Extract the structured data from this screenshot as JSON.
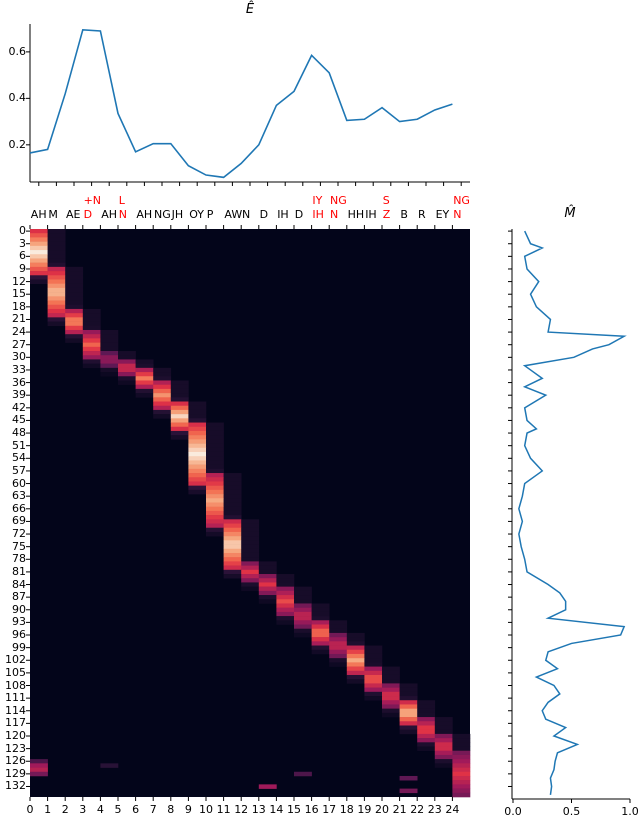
{
  "chart_data": [
    {
      "type": "line",
      "title": "Ê",
      "xlabel": "",
      "ylabel": "",
      "x": [
        0,
        1,
        2,
        3,
        4,
        5,
        6,
        7,
        8,
        9,
        10,
        11,
        12,
        13,
        14,
        15,
        16,
        17,
        18,
        19,
        20,
        21,
        22,
        23,
        24
      ],
      "values": [
        0.165,
        0.18,
        0.42,
        0.695,
        0.69,
        0.335,
        0.17,
        0.205,
        0.205,
        0.11,
        0.07,
        0.06,
        0.12,
        0.2,
        0.37,
        0.43,
        0.585,
        0.51,
        0.305,
        0.31,
        0.36,
        0.3,
        0.31,
        0.35,
        0.375
      ],
      "ylim": [
        0.04,
        0.72
      ],
      "yticks": [
        "0.2",
        "0.4",
        "0.6"
      ],
      "color": "#1f77b4",
      "grid": false
    },
    {
      "type": "heatmap",
      "title": "",
      "x_tick_labels": [
        "0",
        "1",
        "2",
        "3",
        "4",
        "5",
        "6",
        "7",
        "8",
        "9",
        "10",
        "11",
        "12",
        "13",
        "14",
        "15",
        "16",
        "17",
        "18",
        "19",
        "20",
        "21",
        "22",
        "23",
        "24"
      ],
      "y_tick_labels": [
        "0",
        "3",
        "6",
        "9",
        "12",
        "15",
        "18",
        "21",
        "24",
        "27",
        "30",
        "33",
        "36",
        "39",
        "42",
        "45",
        "48",
        "51",
        "54",
        "57",
        "60",
        "63",
        "66",
        "69",
        "72",
        "75",
        "78",
        "81",
        "84",
        "87",
        "90",
        "93",
        "96",
        "99",
        "102",
        "105",
        "108",
        "111",
        "114",
        "117",
        "120",
        "123",
        "126",
        "129",
        "132"
      ],
      "n_rows": 135,
      "n_cols": 25,
      "colormap": "rocket",
      "alignment_segments": [
        {
          "col": 0,
          "start": 0,
          "end": 10,
          "peak": 1.0
        },
        {
          "col": 1,
          "start": 9,
          "end": 20,
          "peak": 0.9
        },
        {
          "col": 2,
          "start": 19,
          "end": 24,
          "peak": 0.8
        },
        {
          "col": 3,
          "start": 24,
          "end": 30,
          "peak": 0.7
        },
        {
          "col": 4,
          "start": 29,
          "end": 32,
          "peak": 0.45
        },
        {
          "col": 5,
          "start": 31,
          "end": 34,
          "peak": 0.6
        },
        {
          "col": 6,
          "start": 33,
          "end": 37,
          "peak": 0.75
        },
        {
          "col": 7,
          "start": 36,
          "end": 42,
          "peak": 0.8
        },
        {
          "col": 8,
          "start": 41,
          "end": 47,
          "peak": 0.95
        },
        {
          "col": 9,
          "start": 46,
          "end": 60,
          "peak": 1.0
        },
        {
          "col": 10,
          "start": 58,
          "end": 70,
          "peak": 0.85
        },
        {
          "col": 11,
          "start": 69,
          "end": 80,
          "peak": 0.95
        },
        {
          "col": 12,
          "start": 79,
          "end": 83,
          "peak": 0.6
        },
        {
          "col": 13,
          "start": 82,
          "end": 86,
          "peak": 0.6
        },
        {
          "col": 14,
          "start": 85,
          "end": 91,
          "peak": 0.65
        },
        {
          "col": 15,
          "start": 89,
          "end": 94,
          "peak": 0.55
        },
        {
          "col": 16,
          "start": 93,
          "end": 98,
          "peak": 0.75
        },
        {
          "col": 17,
          "start": 96,
          "end": 101,
          "peak": 0.55
        },
        {
          "col": 18,
          "start": 99,
          "end": 105,
          "peak": 0.85
        },
        {
          "col": 19,
          "start": 104,
          "end": 109,
          "peak": 0.7
        },
        {
          "col": 20,
          "start": 108,
          "end": 113,
          "peak": 0.6
        },
        {
          "col": 21,
          "start": 112,
          "end": 117,
          "peak": 0.9
        },
        {
          "col": 22,
          "start": 116,
          "end": 121,
          "peak": 0.65
        },
        {
          "col": 23,
          "start": 120,
          "end": 125,
          "peak": 0.6
        },
        {
          "col": 24,
          "start": 124,
          "end": 134,
          "peak": 0.6
        }
      ],
      "extra_cells": [
        {
          "col": 0,
          "row": 126,
          "v": 0.25
        },
        {
          "col": 0,
          "row": 127,
          "v": 0.45
        },
        {
          "col": 0,
          "row": 128,
          "v": 0.5
        },
        {
          "col": 0,
          "row": 129,
          "v": 0.35
        },
        {
          "col": 13,
          "row": 132,
          "v": 0.45
        },
        {
          "col": 21,
          "row": 130,
          "v": 0.3
        },
        {
          "col": 21,
          "row": 133,
          "v": 0.35
        },
        {
          "col": 15,
          "row": 129,
          "v": 0.25
        },
        {
          "col": 4,
          "row": 127,
          "v": 0.15
        }
      ],
      "grid": false
    },
    {
      "type": "line",
      "title": "M̂",
      "orientation": "vertical",
      "xlim": [
        0,
        1
      ],
      "xticks": [
        "0.0",
        "0.5",
        "1.0"
      ],
      "color": "#1f77b4",
      "rows": [
        0,
        3,
        4,
        6,
        9,
        12,
        15,
        18,
        21,
        24,
        25,
        27,
        28,
        30,
        32,
        33,
        35,
        37,
        39,
        42,
        45,
        47,
        48,
        51,
        54,
        57,
        60,
        63,
        66,
        69,
        72,
        75,
        78,
        81,
        84,
        86,
        88,
        90,
        92,
        94,
        96,
        98,
        100,
        102,
        104,
        106,
        108,
        110,
        112,
        114,
        116,
        118,
        120,
        122,
        124,
        126,
        128,
        130,
        132,
        134
      ],
      "values": [
        0.1,
        0.15,
        0.25,
        0.1,
        0.12,
        0.22,
        0.15,
        0.2,
        0.32,
        0.3,
        0.95,
        0.82,
        0.68,
        0.52,
        0.1,
        0.15,
        0.25,
        0.1,
        0.28,
        0.1,
        0.12,
        0.2,
        0.12,
        0.1,
        0.15,
        0.25,
        0.1,
        0.08,
        0.05,
        0.08,
        0.05,
        0.07,
        0.1,
        0.12,
        0.3,
        0.4,
        0.45,
        0.45,
        0.3,
        0.95,
        0.92,
        0.5,
        0.3,
        0.28,
        0.38,
        0.2,
        0.35,
        0.4,
        0.3,
        0.25,
        0.28,
        0.45,
        0.35,
        0.55,
        0.38,
        0.36,
        0.35,
        0.32,
        0.33,
        0.32
      ]
    }
  ],
  "phoneme_labels": [
    {
      "col": 0,
      "top": "",
      "bottom": "AH",
      "red": false
    },
    {
      "col": 1,
      "top": "",
      "bottom": "M",
      "red": false
    },
    {
      "col": 2,
      "top": "",
      "bottom": "AE",
      "red": false
    },
    {
      "col": 3,
      "top": "+N",
      "bottom": "D",
      "red": true
    },
    {
      "col": 4,
      "top": "",
      "bottom": "AH",
      "red": false
    },
    {
      "col": 5,
      "top": "L",
      "bottom": "N",
      "red": true
    },
    {
      "col": 6,
      "top": "",
      "bottom": "AH",
      "red": false
    },
    {
      "col": 7,
      "top": "",
      "bottom": "NG",
      "red": false
    },
    {
      "col": 8,
      "top": "",
      "bottom": "JH",
      "red": false
    },
    {
      "col": 9,
      "top": "",
      "bottom": "OY",
      "red": false
    },
    {
      "col": 10,
      "top": "",
      "bottom": "P",
      "red": false
    },
    {
      "col": 11,
      "top": "",
      "bottom": "AW",
      "red": false
    },
    {
      "col": 12,
      "top": "",
      "bottom": "N",
      "red": false
    },
    {
      "col": 13,
      "top": "",
      "bottom": "D",
      "red": false
    },
    {
      "col": 14,
      "top": "",
      "bottom": "IH",
      "red": false
    },
    {
      "col": 15,
      "top": "",
      "bottom": "D",
      "red": false
    },
    {
      "col": 16,
      "top": "IY",
      "bottom": "IH",
      "red": true
    },
    {
      "col": 17,
      "top": "NG",
      "bottom": "N",
      "red": true
    },
    {
      "col": 18,
      "top": "",
      "bottom": "HH",
      "red": false
    },
    {
      "col": 19,
      "top": "",
      "bottom": "IH",
      "red": false
    },
    {
      "col": 20,
      "top": "S",
      "bottom": "Z",
      "red": true
    },
    {
      "col": 21,
      "top": "",
      "bottom": "B",
      "red": false
    },
    {
      "col": 22,
      "top": "",
      "bottom": "R",
      "red": false
    },
    {
      "col": 23,
      "top": "",
      "bottom": "EY",
      "red": false
    },
    {
      "col": 24,
      "top": "NG",
      "bottom": "N",
      "red": true
    }
  ],
  "titles": {
    "energy": "Ê",
    "mask": "M̂"
  },
  "colors": {
    "line": "#1f77b4",
    "red_label": "#ff0000",
    "heat_bg": "#03051a"
  }
}
